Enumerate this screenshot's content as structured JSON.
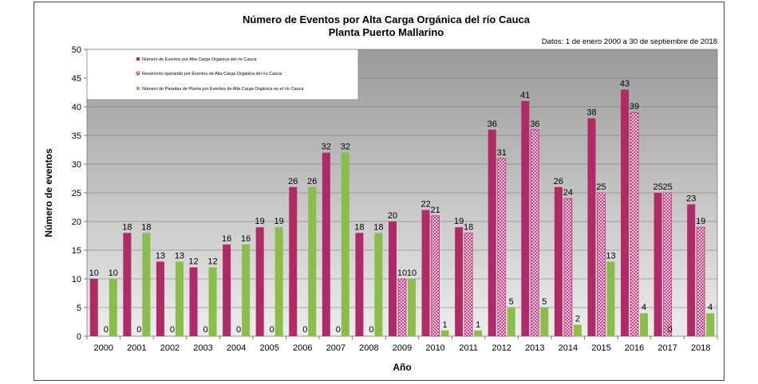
{
  "chart_data": {
    "type": "bar",
    "title": "Número de  Eventos por Alta Carga Orgánica del río Cauca",
    "subtitle": "Planta Puerto Mallarino",
    "note": "Datos: 1 de enero 2000 a 30 de septiembre de 2018",
    "xlabel": "Año",
    "ylabel": "Número de eventos",
    "ylim": [
      0,
      50
    ],
    "yticks": [
      0,
      5,
      10,
      15,
      20,
      25,
      30,
      35,
      40,
      45,
      50
    ],
    "grid": true,
    "legend_position": "top-left",
    "categories": [
      "2000",
      "2001",
      "2002",
      "2003",
      "2004",
      "2005",
      "2006",
      "2007",
      "2008",
      "2009",
      "2010",
      "2011",
      "2012",
      "2013",
      "2014",
      "2015",
      "2016",
      "2017",
      "2018"
    ],
    "series": [
      {
        "name": "Número de Eventos por Alta Carga Orgánica del río Cauca",
        "color": "#b02a68",
        "pattern": "solid",
        "values": [
          10,
          18,
          13,
          12,
          16,
          19,
          26,
          32,
          18,
          20,
          22,
          19,
          36,
          41,
          26,
          38,
          43,
          25,
          23
        ],
        "labels": [
          "10",
          "18",
          "13",
          "12",
          "16",
          "19",
          "26",
          "32",
          "18",
          "20",
          "22",
          "19",
          "36",
          "41",
          "26",
          "38",
          "43",
          "25",
          "23"
        ]
      },
      {
        "name": "Reservorio operando por Eventos de Alta Carga Orgánica del río Cauca",
        "color": "#c2357e",
        "pattern": "crosshatch",
        "values": [
          0,
          0,
          0,
          0,
          0,
          0,
          0,
          0,
          0,
          10,
          21,
          18,
          31,
          36,
          24,
          25,
          39,
          25,
          19
        ],
        "labels": [
          "",
          "",
          "",
          "",
          "",
          "",
          "",
          "",
          "",
          "10",
          "21",
          "18",
          "31",
          "36",
          "24",
          "25",
          "39",
          "25",
          "19"
        ]
      },
      {
        "name": "Número de Paradas de Planta por Eventos de Alta Carga Orgánica en el río Cauca",
        "color": "#8bbd4a",
        "pattern": "solid",
        "values": [
          10,
          18,
          13,
          12,
          16,
          19,
          26,
          32,
          18,
          10,
          1,
          1,
          5,
          5,
          2,
          13,
          4,
          0,
          4
        ],
        "labels": [
          "10",
          "18",
          "13",
          "12",
          "16",
          "19",
          "26",
          "32",
          "18",
          "10",
          "1",
          "1",
          "5",
          "5",
          "2",
          "13",
          "4",
          "0",
          "4"
        ]
      }
    ],
    "zero_labels": [
      "0",
      "0",
      "0",
      "0",
      "0",
      "0",
      "0",
      "0",
      "0",
      "",
      "",
      "",
      "",
      "",
      "",
      "",
      "",
      "0",
      ""
    ]
  }
}
